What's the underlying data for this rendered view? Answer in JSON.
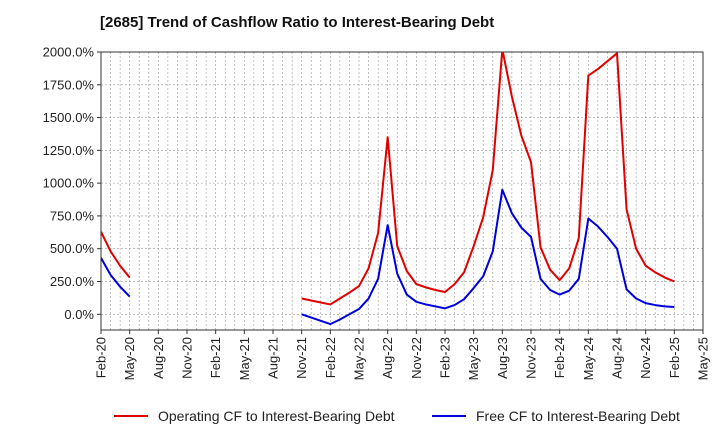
{
  "chart_data": {
    "type": "line",
    "title": "[2685]  Trend of Cashflow Ratio to Interest-Bearing Debt",
    "xlabel": "",
    "ylabel": "",
    "ylim": [
      -120,
      2000
    ],
    "yticks": [
      0,
      250,
      500,
      750,
      1000,
      1250,
      1500,
      1750,
      2000
    ],
    "ytick_labels": [
      "0.0%",
      "250.0%",
      "500.0%",
      "750.0%",
      "1000.0%",
      "1250.0%",
      "1500.0%",
      "1750.0%",
      "2000.0%"
    ],
    "categories": [
      "Feb-20",
      "Mar-20",
      "Apr-20",
      "May-20",
      "Jun-20",
      "Jul-20",
      "Aug-20",
      "Sep-20",
      "Oct-20",
      "Nov-20",
      "Dec-20",
      "Jan-21",
      "Feb-21",
      "Mar-21",
      "Apr-21",
      "May-21",
      "Jun-21",
      "Jul-21",
      "Aug-21",
      "Sep-21",
      "Oct-21",
      "Nov-21",
      "Dec-21",
      "Jan-22",
      "Feb-22",
      "Mar-22",
      "Apr-22",
      "May-22",
      "Jun-22",
      "Jul-22",
      "Aug-22",
      "Sep-22",
      "Oct-22",
      "Nov-22",
      "Dec-22",
      "Jan-23",
      "Feb-23",
      "Mar-23",
      "Apr-23",
      "May-23",
      "Jun-23",
      "Jul-23",
      "Aug-23",
      "Sep-23",
      "Oct-23",
      "Nov-23",
      "Dec-23",
      "Jan-24",
      "Feb-24",
      "Mar-24",
      "Apr-24",
      "May-24",
      "Jun-24",
      "Jul-24",
      "Aug-24",
      "Sep-24",
      "Oct-24",
      "Nov-24",
      "Dec-24",
      "Jan-25",
      "Feb-25",
      "Mar-25",
      "Apr-25",
      "May-25"
    ],
    "xtick_labels": [
      "Feb-20",
      "May-20",
      "Aug-20",
      "Nov-20",
      "Feb-21",
      "May-21",
      "Aug-21",
      "Nov-21",
      "Feb-22",
      "May-22",
      "Aug-22",
      "Nov-22",
      "Feb-23",
      "May-23",
      "Aug-23",
      "Nov-23",
      "Feb-24",
      "May-24",
      "Aug-24",
      "Nov-24",
      "Feb-25",
      "May-25"
    ],
    "grid": true,
    "legend_position": "bottom",
    "series": [
      {
        "name": "Operating CF to Interest-Bearing Debt",
        "color": "#e00000",
        "values": [
          630,
          480,
          370,
          280,
          null,
          null,
          null,
          null,
          null,
          null,
          null,
          null,
          null,
          null,
          null,
          null,
          null,
          null,
          null,
          null,
          null,
          120,
          105,
          90,
          75,
          120,
          165,
          215,
          350,
          620,
          1350,
          520,
          330,
          230,
          205,
          185,
          170,
          230,
          320,
          520,
          740,
          1100,
          2020,
          1660,
          1360,
          1160,
          510,
          340,
          260,
          350,
          580,
          1820,
          1870,
          1930,
          1990,
          800,
          500,
          370,
          320,
          280,
          250,
          null,
          null,
          null
        ]
      },
      {
        "name": "Free CF to Interest-Bearing Debt",
        "color": "#0000dd",
        "values": [
          430,
          300,
          210,
          135,
          null,
          null,
          null,
          null,
          null,
          null,
          null,
          null,
          null,
          null,
          null,
          null,
          null,
          null,
          null,
          null,
          null,
          0,
          -25,
          -50,
          -75,
          -40,
          0,
          40,
          120,
          270,
          680,
          310,
          150,
          95,
          75,
          60,
          45,
          70,
          115,
          200,
          290,
          480,
          950,
          770,
          660,
          590,
          270,
          185,
          150,
          180,
          270,
          730,
          670,
          590,
          500,
          190,
          120,
          85,
          70,
          60,
          55,
          null,
          null,
          null
        ]
      }
    ]
  }
}
